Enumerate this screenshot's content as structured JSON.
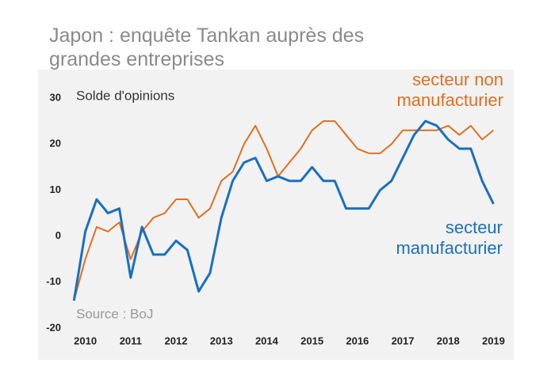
{
  "chart_data": {
    "type": "line",
    "title": "Japon : enquête Tankan auprès des grandes entreprises",
    "y_label": "Solde d'opinions",
    "source": "Source : BoJ",
    "x": [
      2010.25,
      2010.5,
      2010.75,
      2011,
      2011.25,
      2011.5,
      2011.75,
      2012,
      2012.25,
      2012.5,
      2012.75,
      2013,
      2013.25,
      2013.5,
      2013.75,
      2014,
      2014.25,
      2014.5,
      2014.75,
      2015,
      2015.25,
      2015.5,
      2015.75,
      2016,
      2016.25,
      2016.5,
      2016.75,
      2017,
      2017.25,
      2017.5,
      2017.75,
      2018,
      2018.25,
      2018.5,
      2018.75,
      2019,
      2019.25,
      2019.5
    ],
    "series": [
      {
        "name": "secteur non manufacturier",
        "color": "#e07020",
        "values": [
          -14,
          -5,
          2,
          1,
          3,
          -5,
          1,
          4,
          5,
          8,
          8,
          4,
          6,
          12,
          14,
          20,
          24,
          19,
          13,
          16,
          19,
          23,
          25,
          25,
          22,
          19,
          18,
          18,
          20,
          23,
          23,
          23,
          23,
          24,
          22,
          24,
          21,
          23
        ]
      },
      {
        "name": "secteur manufacturier",
        "color": "#1a6fc0",
        "values": [
          -14,
          1,
          8,
          5,
          6,
          -9,
          2,
          -4,
          -4,
          -1,
          -3,
          -12,
          -8,
          4,
          12,
          16,
          17,
          12,
          13,
          12,
          12,
          15,
          12,
          12,
          6,
          6,
          6,
          10,
          12,
          17,
          22,
          25,
          24,
          21,
          19,
          19,
          12,
          7
        ]
      }
    ],
    "xlim": [
      2010,
      2019.8
    ],
    "xticks": [
      {
        "value": 2010.5,
        "label": "2010"
      },
      {
        "value": 2011.5,
        "label": "2011"
      },
      {
        "value": 2012.5,
        "label": "2012"
      },
      {
        "value": 2013.5,
        "label": "2013"
      },
      {
        "value": 2014.5,
        "label": "2014"
      },
      {
        "value": 2015.5,
        "label": "2015"
      },
      {
        "value": 2016.5,
        "label": "2016"
      },
      {
        "value": 2017.5,
        "label": "2017"
      },
      {
        "value": 2018.5,
        "label": "2018"
      },
      {
        "value": 2019.5,
        "label": "2019"
      }
    ],
    "ylim": [
      -20,
      30
    ],
    "yticks": [
      -20,
      -10,
      0,
      10,
      20,
      30
    ],
    "grid": false
  }
}
